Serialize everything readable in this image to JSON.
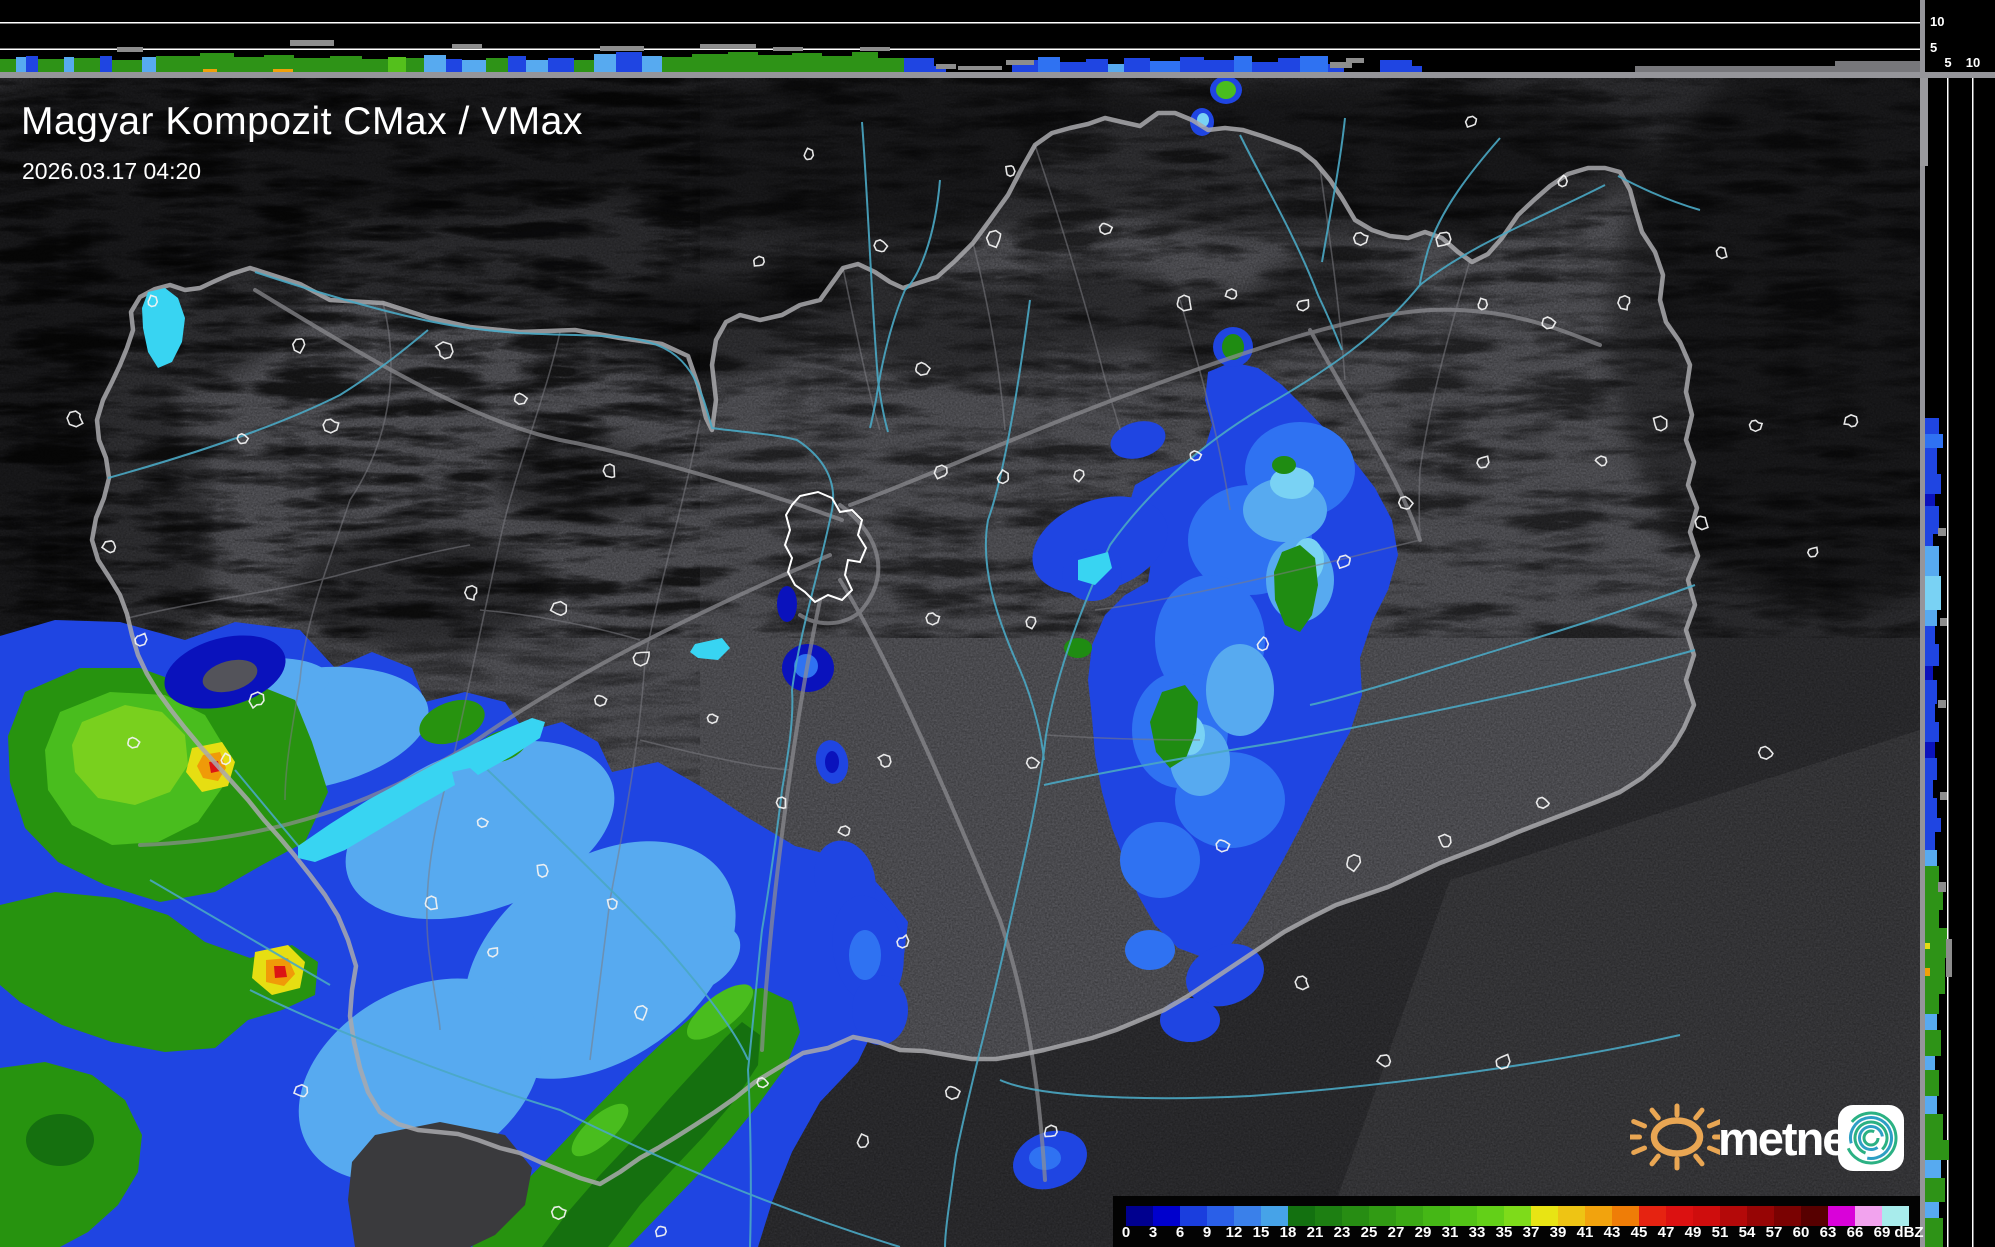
{
  "header": {
    "title": "Magyar Kompozit CMax / VMax",
    "timestamp": "2026.03.17 04:20"
  },
  "legend": {
    "unit_label": "dBZ",
    "tick_labels": [
      "0",
      "3",
      "6",
      "9",
      "12",
      "15",
      "18",
      "21",
      "23",
      "25",
      "27",
      "29",
      "31",
      "33",
      "35",
      "37",
      "39",
      "41",
      "43",
      "45",
      "47",
      "49",
      "51",
      "54",
      "57",
      "60",
      "63",
      "66",
      "69",
      "dBZ"
    ],
    "segment_colors": [
      "#00008f",
      "#0000cd",
      "#1a3ede",
      "#2a5fe8",
      "#3a80ea",
      "#46a3e8",
      "#137110",
      "#1d7f12",
      "#278d13",
      "#319b14",
      "#3ba915",
      "#45b716",
      "#53c417",
      "#63d018",
      "#7edb1a",
      "#e8e414",
      "#eec414",
      "#f2a30d",
      "#ef7d07",
      "#e62311",
      "#dc1111",
      "#cf0d0d",
      "#b40909",
      "#970505",
      "#7a0202",
      "#570000",
      "#d902d9",
      "#f2a3ee",
      "#a8ecec"
    ]
  },
  "profile_axes": {
    "top_strip_labels": [
      "10",
      "5"
    ],
    "right_strip_labels": [
      "5",
      "10"
    ]
  },
  "logo": {
    "brand_text": "metnet"
  },
  "palette": {
    "g": "#2e9317",
    "dg": "#1b7a10",
    "lg": "#54c01c",
    "b": "#1f45e2",
    "bb": "#2f72f2",
    "lb": "#57aaf0",
    "db": "#0a12bc",
    "c": "#79d2f4",
    "y": "#e4da12",
    "o": "#f0a00a",
    "gray": "#8d8d8d",
    "ground": "#77777b"
  },
  "top_profile": {
    "segments": [
      [
        0,
        16,
        13,
        "g"
      ],
      [
        16,
        10,
        15,
        "lb"
      ],
      [
        26,
        12,
        16,
        "b"
      ],
      [
        38,
        26,
        13,
        "g"
      ],
      [
        64,
        10,
        15,
        "lb"
      ],
      [
        74,
        26,
        14,
        "g"
      ],
      [
        100,
        12,
        16,
        "b"
      ],
      [
        112,
        30,
        12,
        "g"
      ],
      [
        142,
        14,
        15,
        "lb"
      ],
      [
        156,
        44,
        16,
        "g"
      ],
      [
        200,
        34,
        19,
        "g"
      ],
      [
        234,
        30,
        15,
        "g"
      ],
      [
        264,
        30,
        17,
        "g"
      ],
      [
        294,
        36,
        14,
        "g"
      ],
      [
        330,
        32,
        16,
        "g"
      ],
      [
        362,
        26,
        13,
        "g"
      ],
      [
        388,
        18,
        15,
        "lg"
      ],
      [
        406,
        18,
        14,
        "g"
      ],
      [
        424,
        22,
        17,
        "lb"
      ],
      [
        446,
        16,
        13,
        "b"
      ],
      [
        462,
        24,
        12,
        "lb"
      ],
      [
        486,
        22,
        14,
        "g"
      ],
      [
        508,
        18,
        16,
        "b"
      ],
      [
        526,
        22,
        12,
        "lb"
      ],
      [
        548,
        26,
        14,
        "b"
      ],
      [
        574,
        20,
        12,
        "g"
      ],
      [
        594,
        22,
        18,
        "lb"
      ],
      [
        616,
        26,
        20,
        "b"
      ],
      [
        642,
        20,
        16,
        "lb"
      ],
      [
        662,
        30,
        15,
        "g"
      ],
      [
        692,
        36,
        18,
        "g"
      ],
      [
        728,
        30,
        20,
        "g"
      ],
      [
        758,
        34,
        17,
        "g"
      ],
      [
        792,
        30,
        19,
        "g"
      ],
      [
        822,
        30,
        16,
        "g"
      ],
      [
        852,
        26,
        20,
        "g"
      ],
      [
        878,
        26,
        14,
        "g"
      ],
      [
        904,
        30,
        14,
        "b"
      ],
      [
        934,
        12,
        6,
        "b"
      ],
      [
        1012,
        26,
        12,
        "b"
      ],
      [
        1038,
        22,
        15,
        "bb"
      ],
      [
        1060,
        26,
        10,
        "b"
      ],
      [
        1086,
        22,
        13,
        "b"
      ],
      [
        1108,
        16,
        8,
        "lb"
      ],
      [
        1124,
        26,
        14,
        "b"
      ],
      [
        1150,
        30,
        11,
        "bb"
      ],
      [
        1180,
        24,
        15,
        "b"
      ],
      [
        1204,
        30,
        12,
        "b"
      ],
      [
        1234,
        18,
        16,
        "bb"
      ],
      [
        1252,
        26,
        10,
        "b"
      ],
      [
        1278,
        22,
        14,
        "b"
      ],
      [
        1300,
        28,
        16,
        "bb"
      ],
      [
        1328,
        16,
        8,
        "b"
      ],
      [
        1380,
        32,
        12,
        "b"
      ],
      [
        1412,
        10,
        6,
        "b"
      ]
    ],
    "clutter_flags": [
      [
        117,
        26,
        47,
        5
      ],
      [
        290,
        44,
        40,
        6
      ],
      [
        452,
        30,
        44,
        5
      ],
      [
        600,
        44,
        46,
        5
      ],
      [
        700,
        56,
        44,
        5
      ],
      [
        773,
        30,
        47,
        4
      ],
      [
        860,
        30,
        47,
        4
      ],
      [
        936,
        20,
        64,
        5
      ],
      [
        958,
        44,
        66,
        4
      ],
      [
        1006,
        28,
        60,
        5
      ],
      [
        1330,
        22,
        62,
        6
      ],
      [
        1346,
        18,
        58,
        5
      ]
    ],
    "ground_bars": [
      [
        1635,
        285,
        6
      ],
      [
        1835,
        85,
        11
      ]
    ],
    "hot_marks": [
      [
        203,
        14,
        "o"
      ],
      [
        273,
        20,
        "o"
      ]
    ]
  },
  "right_profile": {
    "segments": [
      [
        418,
        16,
        14,
        "b"
      ],
      [
        434,
        14,
        18,
        "bb"
      ],
      [
        448,
        26,
        12,
        "b"
      ],
      [
        474,
        20,
        16,
        "b"
      ],
      [
        494,
        12,
        10,
        "db"
      ],
      [
        506,
        28,
        14,
        "b"
      ],
      [
        534,
        12,
        8,
        "b"
      ],
      [
        546,
        30,
        14,
        "lb"
      ],
      [
        576,
        34,
        16,
        "c"
      ],
      [
        610,
        16,
        12,
        "lb"
      ],
      [
        626,
        18,
        10,
        "b"
      ],
      [
        644,
        22,
        14,
        "b"
      ],
      [
        666,
        14,
        8,
        "db"
      ],
      [
        680,
        24,
        12,
        "b"
      ],
      [
        704,
        18,
        10,
        "b"
      ],
      [
        722,
        20,
        14,
        "b"
      ],
      [
        742,
        16,
        10,
        "db"
      ],
      [
        758,
        22,
        12,
        "b"
      ],
      [
        780,
        18,
        8,
        "b"
      ],
      [
        798,
        20,
        12,
        "b"
      ],
      [
        818,
        14,
        16,
        "b"
      ],
      [
        832,
        18,
        10,
        "b"
      ],
      [
        850,
        16,
        12,
        "lb"
      ],
      [
        866,
        20,
        14,
        "g"
      ],
      [
        886,
        24,
        18,
        "g"
      ],
      [
        910,
        18,
        14,
        "g"
      ],
      [
        928,
        30,
        22,
        "g"
      ],
      [
        958,
        36,
        20,
        "g"
      ],
      [
        994,
        20,
        14,
        "g"
      ],
      [
        1014,
        16,
        12,
        "lb"
      ],
      [
        1030,
        26,
        16,
        "g"
      ],
      [
        1056,
        14,
        10,
        "lb"
      ],
      [
        1070,
        26,
        14,
        "g"
      ],
      [
        1096,
        18,
        12,
        "lb"
      ],
      [
        1114,
        26,
        18,
        "g"
      ],
      [
        1140,
        20,
        24,
        "g"
      ],
      [
        1160,
        18,
        16,
        "lb"
      ],
      [
        1178,
        24,
        20,
        "g"
      ],
      [
        1202,
        16,
        14,
        "lb"
      ],
      [
        1218,
        29,
        18,
        "g"
      ]
    ],
    "clutter_flags": [
      [
        1946,
        939,
        6,
        38
      ],
      [
        1938,
        528,
        8,
        8
      ],
      [
        1940,
        618,
        7,
        8
      ],
      [
        1938,
        700,
        8,
        8
      ],
      [
        1940,
        792,
        7,
        8
      ],
      [
        1938,
        882,
        8,
        10
      ]
    ],
    "hot_marks": [
      [
        943,
        6,
        "y"
      ],
      [
        968,
        8,
        "o"
      ]
    ]
  }
}
